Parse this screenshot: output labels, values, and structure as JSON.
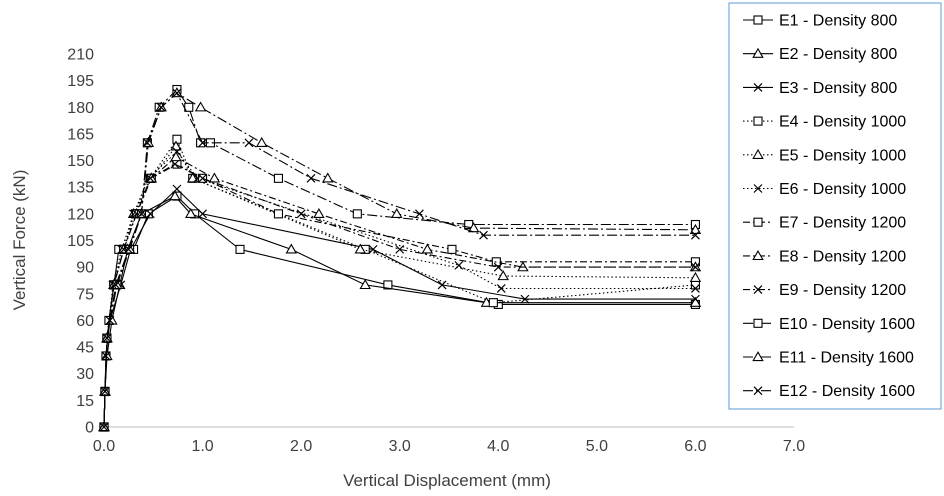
{
  "chart_data": {
    "type": "line",
    "title": "",
    "xlabel": "Vertical Displacement (mm)",
    "ylabel": "Vertical Force (kN)",
    "xlim": [
      0,
      7
    ],
    "ylim": [
      0,
      210
    ],
    "x_ticks": [
      "0.0",
      "1.0",
      "2.0",
      "3.0",
      "4.0",
      "5.0",
      "6.0",
      "7.0"
    ],
    "y_ticks": [
      "0",
      "15",
      "30",
      "45",
      "60",
      "75",
      "90",
      "105",
      "120",
      "135",
      "150",
      "165",
      "180",
      "195",
      "210"
    ],
    "grid": "none",
    "legend_position": "right",
    "series": [
      {
        "name": "E1 - Density 800",
        "marker": "square",
        "line": "solid",
        "points": [
          [
            0,
            0
          ],
          [
            0.01,
            20
          ],
          [
            0.02,
            40
          ],
          [
            0.05,
            60
          ],
          [
            0.1,
            80
          ],
          [
            0.15,
            100
          ],
          [
            0.3,
            100
          ],
          [
            0.45,
            120
          ],
          [
            0.74,
            130
          ],
          [
            0.92,
            120
          ],
          [
            1.38,
            100
          ],
          [
            2.88,
            80
          ],
          [
            4.0,
            69
          ],
          [
            6.0,
            69
          ]
        ]
      },
      {
        "name": "E2 - Density 800",
        "marker": "triangle",
        "line": "solid",
        "points": [
          [
            0,
            0
          ],
          [
            0.01,
            20
          ],
          [
            0.03,
            40
          ],
          [
            0.08,
            60
          ],
          [
            0.16,
            80
          ],
          [
            0.24,
            100
          ],
          [
            0.38,
            120
          ],
          [
            0.72,
            130
          ],
          [
            0.88,
            120
          ],
          [
            1.9,
            100
          ],
          [
            2.65,
            80
          ],
          [
            3.88,
            70
          ],
          [
            6.0,
            70
          ]
        ]
      },
      {
        "name": "E3 - Density 800",
        "marker": "x",
        "line": "solid",
        "points": [
          [
            0,
            0
          ],
          [
            0.01,
            20
          ],
          [
            0.02,
            40
          ],
          [
            0.06,
            60
          ],
          [
            0.17,
            80
          ],
          [
            0.27,
            100
          ],
          [
            0.47,
            120
          ],
          [
            0.74,
            134
          ],
          [
            1.0,
            120
          ],
          [
            2.73,
            100
          ],
          [
            3.43,
            80
          ],
          [
            4.27,
            72
          ],
          [
            6.0,
            72
          ]
        ]
      },
      {
        "name": "E4 - Density 1000",
        "marker": "square",
        "line": "dotted",
        "points": [
          [
            0,
            0
          ],
          [
            0.01,
            20
          ],
          [
            0.03,
            50
          ],
          [
            0.1,
            80
          ],
          [
            0.2,
            100
          ],
          [
            0.32,
            120
          ],
          [
            0.47,
            140
          ],
          [
            0.74,
            162
          ],
          [
            0.9,
            140
          ],
          [
            2.65,
            100
          ],
          [
            3.95,
            70
          ],
          [
            6.0,
            80
          ]
        ]
      },
      {
        "name": "E5 - Density 1000",
        "marker": "triangle",
        "line": "dotted",
        "points": [
          [
            0,
            0
          ],
          [
            0.01,
            20
          ],
          [
            0.03,
            50
          ],
          [
            0.1,
            80
          ],
          [
            0.2,
            100
          ],
          [
            0.3,
            120
          ],
          [
            0.48,
            140
          ],
          [
            0.73,
            158
          ],
          [
            0.9,
            140
          ],
          [
            2.6,
            100
          ],
          [
            4.05,
            85
          ],
          [
            6.0,
            84
          ]
        ]
      },
      {
        "name": "E6 - Density 1000",
        "marker": "x",
        "line": "dotted",
        "points": [
          [
            0,
            0
          ],
          [
            0.01,
            20
          ],
          [
            0.03,
            50
          ],
          [
            0.09,
            80
          ],
          [
            0.18,
            100
          ],
          [
            0.3,
            120
          ],
          [
            0.45,
            140
          ],
          [
            0.74,
            155
          ],
          [
            0.95,
            140
          ],
          [
            3.6,
            91
          ],
          [
            4.03,
            78
          ],
          [
            6.0,
            78
          ]
        ]
      },
      {
        "name": "E7 - Density 1200",
        "marker": "square",
        "line": "dash-dot",
        "points": [
          [
            0,
            0
          ],
          [
            0.01,
            20
          ],
          [
            0.03,
            50
          ],
          [
            0.1,
            80
          ],
          [
            0.2,
            100
          ],
          [
            0.33,
            120
          ],
          [
            0.48,
            140
          ],
          [
            0.74,
            148
          ],
          [
            1.0,
            140
          ],
          [
            1.77,
            120
          ],
          [
            3.53,
            100
          ],
          [
            3.98,
            93
          ],
          [
            6.0,
            93
          ]
        ]
      },
      {
        "name": "E8 - Density 1200",
        "marker": "triangle",
        "line": "dash-dot",
        "points": [
          [
            0,
            0
          ],
          [
            0.01,
            20
          ],
          [
            0.03,
            50
          ],
          [
            0.1,
            80
          ],
          [
            0.2,
            100
          ],
          [
            0.33,
            120
          ],
          [
            0.48,
            140
          ],
          [
            0.73,
            152
          ],
          [
            1.12,
            140
          ],
          [
            2.18,
            120
          ],
          [
            3.28,
            100
          ],
          [
            4.25,
            90
          ],
          [
            6.0,
            90
          ]
        ]
      },
      {
        "name": "E9 - Density 1200",
        "marker": "x",
        "line": "dash-dot",
        "points": [
          [
            0,
            0
          ],
          [
            0.01,
            20
          ],
          [
            0.03,
            50
          ],
          [
            0.1,
            80
          ],
          [
            0.2,
            100
          ],
          [
            0.33,
            120
          ],
          [
            0.47,
            140
          ],
          [
            0.72,
            148
          ],
          [
            1.0,
            140
          ],
          [
            2.0,
            120
          ],
          [
            3.0,
            100
          ],
          [
            4.0,
            90
          ],
          [
            6.0,
            90
          ]
        ]
      },
      {
        "name": "E10 - Density 1600",
        "marker": "square",
        "line": "long-dash-dot",
        "points": [
          [
            0,
            0
          ],
          [
            0.01,
            20
          ],
          [
            0.03,
            50
          ],
          [
            0.13,
            80
          ],
          [
            0.26,
            100
          ],
          [
            0.38,
            120
          ],
          [
            0.44,
            160
          ],
          [
            0.56,
            180
          ],
          [
            0.74,
            190
          ],
          [
            0.86,
            180
          ],
          [
            0.98,
            160
          ],
          [
            1.08,
            160
          ],
          [
            1.77,
            140
          ],
          [
            2.57,
            120
          ],
          [
            3.7,
            114
          ],
          [
            6.0,
            114
          ]
        ]
      },
      {
        "name": "E11 - Density 1600",
        "marker": "triangle",
        "line": "long-dash-dot",
        "points": [
          [
            0,
            0
          ],
          [
            0.01,
            20
          ],
          [
            0.03,
            50
          ],
          [
            0.13,
            80
          ],
          [
            0.26,
            100
          ],
          [
            0.38,
            120
          ],
          [
            0.45,
            160
          ],
          [
            0.58,
            180
          ],
          [
            0.74,
            188
          ],
          [
            0.98,
            180
          ],
          [
            1.6,
            160
          ],
          [
            2.27,
            140
          ],
          [
            2.97,
            120
          ],
          [
            3.75,
            112
          ],
          [
            6.0,
            111
          ]
        ]
      },
      {
        "name": "E12 - Density 1600",
        "marker": "x",
        "line": "long-dash-dot",
        "points": [
          [
            0,
            0
          ],
          [
            0.01,
            20
          ],
          [
            0.03,
            50
          ],
          [
            0.12,
            80
          ],
          [
            0.25,
            100
          ],
          [
            0.38,
            120
          ],
          [
            0.44,
            160
          ],
          [
            0.58,
            180
          ],
          [
            0.74,
            188
          ],
          [
            1.0,
            160
          ],
          [
            1.47,
            160
          ],
          [
            2.1,
            140
          ],
          [
            3.2,
            120
          ],
          [
            3.85,
            108
          ],
          [
            6.0,
            108
          ]
        ]
      }
    ]
  }
}
